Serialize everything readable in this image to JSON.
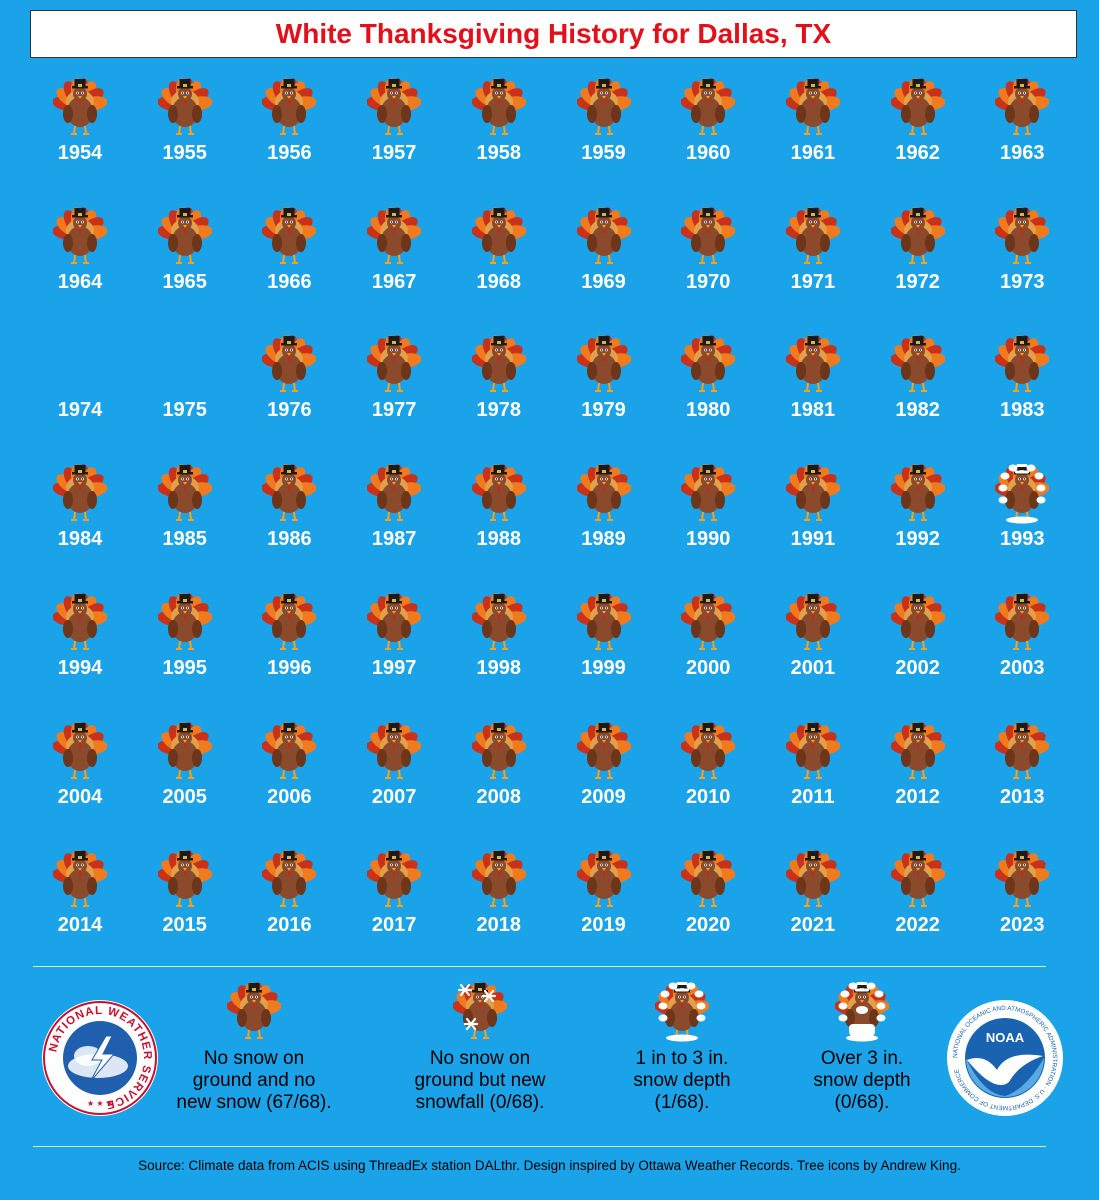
{
  "title": "White Thanksgiving History for Dallas, TX",
  "chart_data": {
    "type": "table",
    "categories_legend": [
      "none",
      "snowfall",
      "light",
      "deep"
    ],
    "rows": [
      {
        "years": [
          1954,
          1955,
          1956,
          1957,
          1958,
          1959,
          1960,
          1961,
          1962,
          1963
        ],
        "status": [
          "none",
          "none",
          "none",
          "none",
          "none",
          "none",
          "none",
          "none",
          "none",
          "none"
        ]
      },
      {
        "years": [
          1964,
          1965,
          1966,
          1967,
          1968,
          1969,
          1970,
          1971,
          1972,
          1973
        ],
        "status": [
          "none",
          "none",
          "none",
          "none",
          "none",
          "none",
          "none",
          "none",
          "none",
          "none"
        ]
      },
      {
        "years": [
          1974,
          1975,
          1976,
          1977,
          1978,
          1979,
          1980,
          1981,
          1982,
          1983
        ],
        "status": [
          "missing",
          "missing",
          "none",
          "none",
          "none",
          "none",
          "none",
          "none",
          "none",
          "none"
        ]
      },
      {
        "years": [
          1984,
          1985,
          1986,
          1987,
          1988,
          1989,
          1990,
          1991,
          1992,
          1993
        ],
        "status": [
          "none",
          "none",
          "none",
          "none",
          "none",
          "none",
          "none",
          "none",
          "none",
          "light"
        ]
      },
      {
        "years": [
          1994,
          1995,
          1996,
          1997,
          1998,
          1999,
          2000,
          2001,
          2002,
          2003
        ],
        "status": [
          "none",
          "none",
          "none",
          "none",
          "none",
          "none",
          "none",
          "none",
          "none",
          "none"
        ]
      },
      {
        "years": [
          2004,
          2005,
          2006,
          2007,
          2008,
          2009,
          2010,
          2011,
          2012,
          2013
        ],
        "status": [
          "none",
          "none",
          "none",
          "none",
          "none",
          "none",
          "none",
          "none",
          "none",
          "none"
        ]
      },
      {
        "years": [
          2014,
          2015,
          2016,
          2017,
          2018,
          2019,
          2020,
          2021,
          2022,
          2023
        ],
        "status": [
          "none",
          "none",
          "none",
          "none",
          "none",
          "none",
          "none",
          "none",
          "none",
          "none"
        ]
      }
    ]
  },
  "legend": [
    {
      "key": "none",
      "text": "No snow on\nground and no\nnew snow (67/68)."
    },
    {
      "key": "snowfall",
      "text": "No snow on\nground but new\nsnowfall (0/68)."
    },
    {
      "key": "light",
      "text": "1 in to 3 in.\nsnow depth\n(1/68)."
    },
    {
      "key": "deep",
      "text": "Over 3 in.\nsnow depth\n(0/68)."
    }
  ],
  "logos": {
    "nws": "NATIONAL WEATHER SERVICE",
    "noaa": "NOAA",
    "noaa_ring": "NATIONAL OCEANIC AND ATMOSPHERIC ADMINISTRATION · U.S. DEPARTMENT OF COMMERCE"
  },
  "source": "Source: Climate data from ACIS using ThreadEx station DALthr. Design inspired by Ottawa Weather Records. Tree icons by Andrew King.",
  "colors": {
    "background": "#1aa3e8",
    "title": "#e3101b",
    "turkey_body": "#8b4a2b",
    "feather_orange": "#f07a1e",
    "feather_red": "#c8321a",
    "snow": "#ffffff"
  }
}
